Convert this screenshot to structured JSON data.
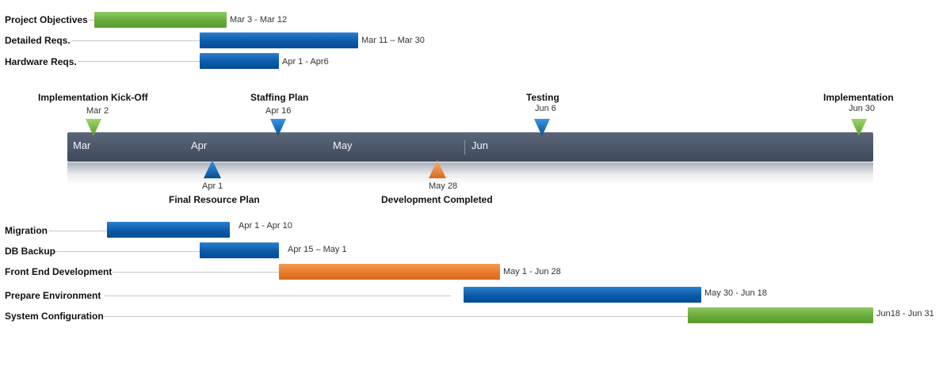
{
  "top_tasks": [
    {
      "label": "Project Objectives",
      "range": "Mar 3 - Mar 12",
      "color": "#6aaa3a"
    },
    {
      "label": "Detailed Reqs.",
      "range": "Mar 11 – Mar 30",
      "color": "#0b5aa8"
    },
    {
      "label": "Hardware Reqs.",
      "range": "Apr 1 - Apr6",
      "color": "#0b5aa8"
    }
  ],
  "timeline": {
    "months": [
      "Mar",
      "Apr",
      "May",
      "Jun"
    ]
  },
  "milestones_above": [
    {
      "title": "Implementation Kick-Off",
      "date": "Mar 2",
      "color": "#6aaa3a"
    },
    {
      "title": "Staffing Plan",
      "date": "Apr 16",
      "color": "#0b5aa8"
    },
    {
      "title": "Testing",
      "date": "Jun 6",
      "color": "#0b5aa8"
    },
    {
      "title": "Implementation",
      "date": "Jun 30",
      "color": "#6aaa3a"
    }
  ],
  "milestones_below": [
    {
      "title": "Final Resource Plan",
      "date": "Apr 1",
      "color": "#0b5aa8"
    },
    {
      "title": "Development Completed",
      "date": "May 28",
      "color": "#e8792a"
    }
  ],
  "bottom_tasks": [
    {
      "label": "Migration",
      "range": "Apr 1 -  Apr 10",
      "color": "#0b5aa8"
    },
    {
      "label": "DB Backup",
      "range": "Apr 15 – May 1",
      "color": "#0b5aa8"
    },
    {
      "label": "Front End Development",
      "range": "May 1 - Jun 28",
      "color": "#e8792a"
    },
    {
      "label": "Prepare Environment",
      "range": "May 30 - Jun 18",
      "color": "#0b5aa8"
    },
    {
      "label": "System Configuration",
      "range": "Jun18 - Jun 31",
      "color": "#6aaa3a"
    }
  ]
}
